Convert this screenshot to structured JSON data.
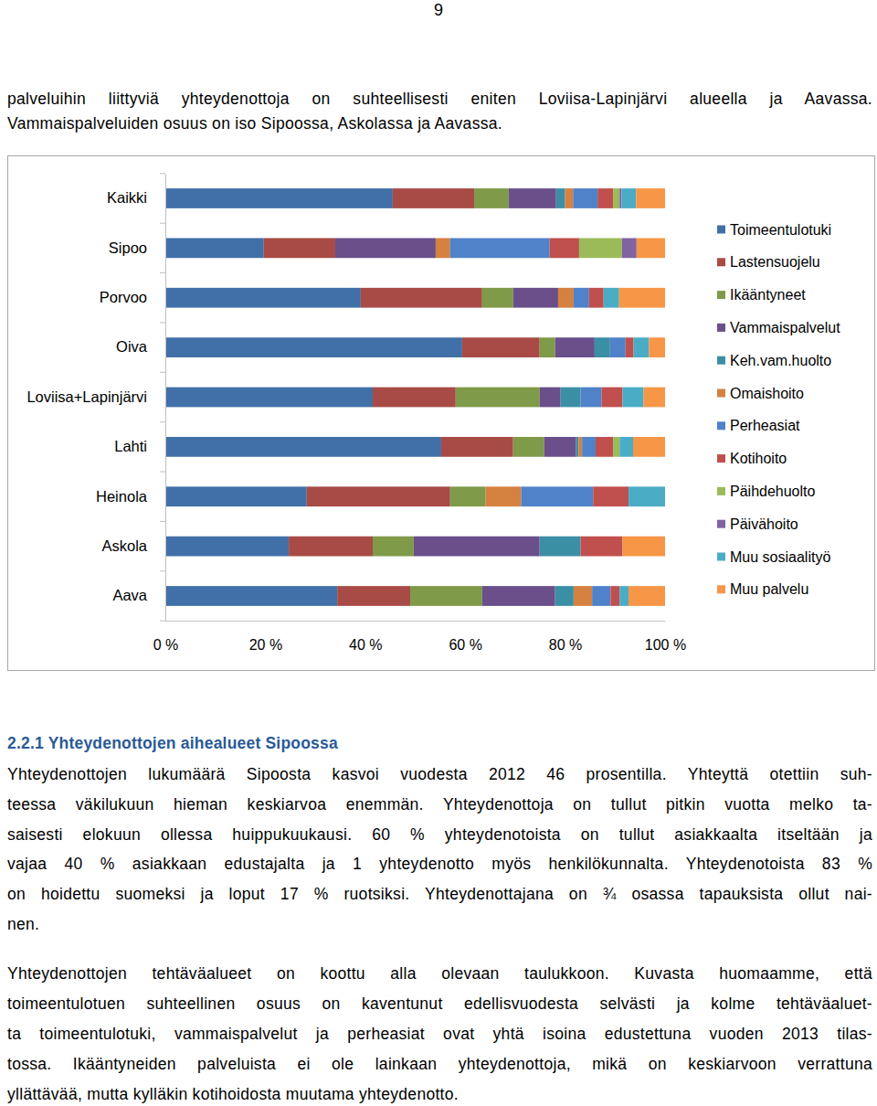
{
  "page_number": "9",
  "intro_lines": [
    "palveluihin liittyviä yhteydenottoja on suhteellisesti eniten Loviisa-Lapinjärvi alueella ja Aavassa.",
    "Vammaispalveluiden osuus on iso Sipoossa, Askolassa ja Aavassa."
  ],
  "chart_data": {
    "type": "bar",
    "orientation": "horizontal",
    "stacked": true,
    "legend": "right",
    "categories": [
      "Kaikki",
      "Sipoo",
      "Porvoo",
      "Oiva",
      "Loviisa+Lapinjärvi",
      "Lahti",
      "Heinola",
      "Askola",
      "Aava"
    ],
    "xlim": [
      0,
      100
    ],
    "xticks": [
      {
        "value": 0,
        "label": "0 %"
      },
      {
        "value": 20,
        "label": "20 %"
      },
      {
        "value": 40,
        "label": "40 %"
      },
      {
        "value": 60,
        "label": "60 %"
      },
      {
        "value": 80,
        "label": "80 %"
      },
      {
        "value": 100,
        "label": "100 %"
      }
    ],
    "series": [
      {
        "name": "Toimeentulotuki",
        "color": "#4170a8",
        "values": [
          45.5,
          19.7,
          39.1,
          59.4,
          41.5,
          55.2,
          28.3,
          24.7,
          34.4
        ]
      },
      {
        "name": "Lastensuojelu",
        "color": "#a84b46",
        "values": [
          16.3,
          14.3,
          24.3,
          15.5,
          16.6,
          14.4,
          28.7,
          16.8,
          14.6
        ]
      },
      {
        "name": "Ikääntyneet",
        "color": "#7f9a48",
        "values": [
          6.9,
          0,
          6.2,
          3.1,
          16.8,
          6.2,
          7.1,
          8.2,
          14.4
        ]
      },
      {
        "name": "Vammaispalvelut",
        "color": "#6a4f8b",
        "values": [
          9.5,
          20.1,
          9.0,
          7.9,
          4.2,
          6.4,
          0,
          25.2,
          14.6
        ]
      },
      {
        "name": "Keh.vam.huolto",
        "color": "#3b8fa5",
        "values": [
          1.8,
          0,
          0,
          3.1,
          4.0,
          0.5,
          0,
          8.2,
          3.7
        ]
      },
      {
        "name": "Omaishoito",
        "color": "#d5813f",
        "values": [
          1.6,
          2.9,
          3.1,
          0,
          0,
          0.7,
          7.1,
          0,
          3.7
        ]
      },
      {
        "name": "Perheasiat",
        "color": "#4f82c8",
        "values": [
          4.9,
          19.9,
          3.1,
          3.1,
          4.2,
          2.7,
          14.4,
          0,
          3.7
        ]
      },
      {
        "name": "Kotihoito",
        "color": "#c0504d",
        "values": [
          3.1,
          5.9,
          2.9,
          1.6,
          4.2,
          3.5,
          7.1,
          8.4,
          1.8
        ]
      },
      {
        "name": "Päihdehuolto",
        "color": "#9bbb59",
        "values": [
          1.3,
          8.6,
          0,
          0,
          0,
          1.3,
          0,
          0,
          0
        ]
      },
      {
        "name": "Päivähoito",
        "color": "#8064a2",
        "values": [
          0.4,
          2.9,
          0,
          0,
          0,
          0,
          0,
          0,
          0
        ]
      },
      {
        "name": "Muu sosiaalityö",
        "color": "#4bacc6",
        "values": [
          2.9,
          0,
          3.1,
          3.1,
          4.2,
          2.7,
          7.3,
          0,
          1.8
        ]
      },
      {
        "name": "Muu palvelu",
        "color": "#f79646",
        "values": [
          5.8,
          5.7,
          9.2,
          3.2,
          4.3,
          6.4,
          0,
          8.5,
          7.3
        ]
      }
    ]
  },
  "section": {
    "heading": "2.2.1 Yhteydenottojen aihealueet Sipoossa",
    "paragraphs": [
      [
        "Yhteydenottojen lukumäärä Sipoosta kasvoi vuodesta 2012 46 prosentilla. Yhteyttä otettiin suh-",
        "teessa väkilukuun hieman keskiarvoa enemmän. Yhteydenottoja on tullut pitkin vuotta melko ta-",
        "saisesti elokuun ollessa huippukuukausi. 60 % yhteydenotoista on tullut asiakkaalta itseltään ja",
        "vajaa 40 % asiakkaan edustajalta ja 1 yhteydenotto myös henkilökunnalta. Yhteydenotoista 83 %",
        "on hoidettu suomeksi ja loput 17 % ruotsiksi. Yhteydenottajana on ¾ osassa tapauksista ollut nai-",
        "nen."
      ],
      [
        "Yhteydenottojen tehtäväalueet on koottu alla olevaan taulukkoon. Kuvasta huomaamme, että",
        "toimeentulotuen suhteellinen osuus on kaventunut edellisvuodesta selvästi ja kolme tehtäväaluet-",
        "ta toimeentulotuki, vammaispalvelut ja perheasiat ovat yhtä isoina edustettuna vuoden 2013 tilas-",
        "tossa. Ikääntyneiden palveluista ei ole lainkaan yhteydenottoja, mikä on keskiarvoon verrattuna",
        "yllättävää, mutta kylläkin kotihoidosta muutama yhteydenotto."
      ]
    ]
  }
}
